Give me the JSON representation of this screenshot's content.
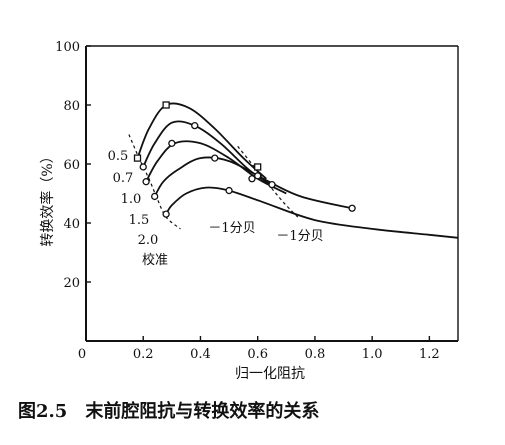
{
  "figure": {
    "caption": "图2.5　末前腔阻抗与转换效率的关系"
  },
  "chart_data": {
    "type": "line",
    "title": "",
    "xlabel": "归一化阻抗",
    "ylabel": "转换效率（%）",
    "xlim": [
      0,
      1.3
    ],
    "ylim": [
      0,
      100
    ],
    "xticks": [
      {
        "value": 0,
        "label": "0"
      },
      {
        "value": 0.2,
        "label": "0.2"
      },
      {
        "value": 0.4,
        "label": "0.4"
      },
      {
        "value": 0.6,
        "label": "0.6"
      },
      {
        "value": 0.8,
        "label": "0.8"
      },
      {
        "value": 1.0,
        "label": "1.0"
      },
      {
        "value": 1.2,
        "label": "1.2"
      }
    ],
    "yticks": [
      {
        "value": 20,
        "label": "20"
      },
      {
        "value": 40,
        "label": "40"
      },
      {
        "value": 60,
        "label": "60"
      },
      {
        "value": 80,
        "label": "80"
      },
      {
        "value": 100,
        "label": "100"
      }
    ],
    "grid": false,
    "series": [
      {
        "label": "0.5",
        "x": [
          0.18,
          0.22,
          0.28,
          0.36,
          0.45,
          0.55,
          0.63
        ],
        "y": [
          62,
          72,
          80,
          79,
          72,
          62,
          55
        ]
      },
      {
        "label": "0.7",
        "x": [
          0.2,
          0.24,
          0.3,
          0.38,
          0.47,
          0.57,
          0.66
        ],
        "y": [
          59,
          67,
          74,
          73,
          67,
          58,
          52
        ]
      },
      {
        "label": "1.0",
        "x": [
          0.21,
          0.25,
          0.31,
          0.4,
          0.5,
          0.6,
          0.7
        ],
        "y": [
          54,
          61,
          67,
          67,
          62,
          55,
          50
        ]
      },
      {
        "label": "1.5",
        "x": [
          0.24,
          0.27,
          0.32,
          0.4,
          0.5,
          0.62,
          0.75,
          0.93
        ],
        "y": [
          49,
          54,
          58,
          62,
          61,
          55,
          49,
          45
        ]
      },
      {
        "label": "2.0",
        "x": [
          0.28,
          0.3,
          0.35,
          0.42,
          0.5,
          0.62,
          0.8,
          1.0,
          1.2,
          1.3
        ],
        "y": [
          43,
          46,
          50,
          52,
          51,
          47,
          41,
          38,
          36,
          35
        ]
      }
    ],
    "markers": [
      {
        "series": "0.5",
        "shape": "square",
        "x": [
          0.18,
          0.28,
          0.6
        ],
        "y": [
          62,
          80,
          59
        ]
      },
      {
        "series": "0.7",
        "shape": "circle",
        "x": [
          0.2,
          0.38,
          0.6
        ],
        "y": [
          59,
          73,
          56
        ]
      },
      {
        "series": "1.0",
        "shape": "circle",
        "x": [
          0.21,
          0.3,
          0.58
        ],
        "y": [
          54,
          67,
          55
        ]
      },
      {
        "series": "1.5",
        "shape": "circle",
        "x": [
          0.24,
          0.45,
          0.65,
          0.93
        ],
        "y": [
          49,
          62,
          53,
          45
        ]
      },
      {
        "series": "2.0",
        "shape": "circle",
        "x": [
          0.28,
          0.5
        ],
        "y": [
          43,
          51
        ]
      }
    ],
    "annotations": [
      {
        "text": "0.5",
        "anchor": "left of curve start"
      },
      {
        "text": "0.7",
        "anchor": "left of curve start"
      },
      {
        "text": "1.0",
        "anchor": "left of curve start"
      },
      {
        "text": "1.5",
        "anchor": "left of curve start"
      },
      {
        "text": "2.0",
        "anchor": "left of curve start"
      },
      {
        "text": "校准",
        "anchor": "below curve labels"
      },
      {
        "text": "－1分贝",
        "anchor": "left -1 dB boundary"
      },
      {
        "text": "－1分贝",
        "anchor": "right -1 dB boundary"
      }
    ],
    "db_boundary_left": {
      "x": [
        0.15,
        0.19,
        0.22,
        0.25,
        0.28,
        0.33
      ],
      "y": [
        70,
        61,
        55,
        48,
        42,
        38
      ]
    },
    "db_boundary_right": {
      "x": [
        0.53,
        0.58,
        0.63,
        0.69,
        0.74
      ],
      "y": [
        66,
        60,
        54,
        47,
        42
      ]
    }
  }
}
